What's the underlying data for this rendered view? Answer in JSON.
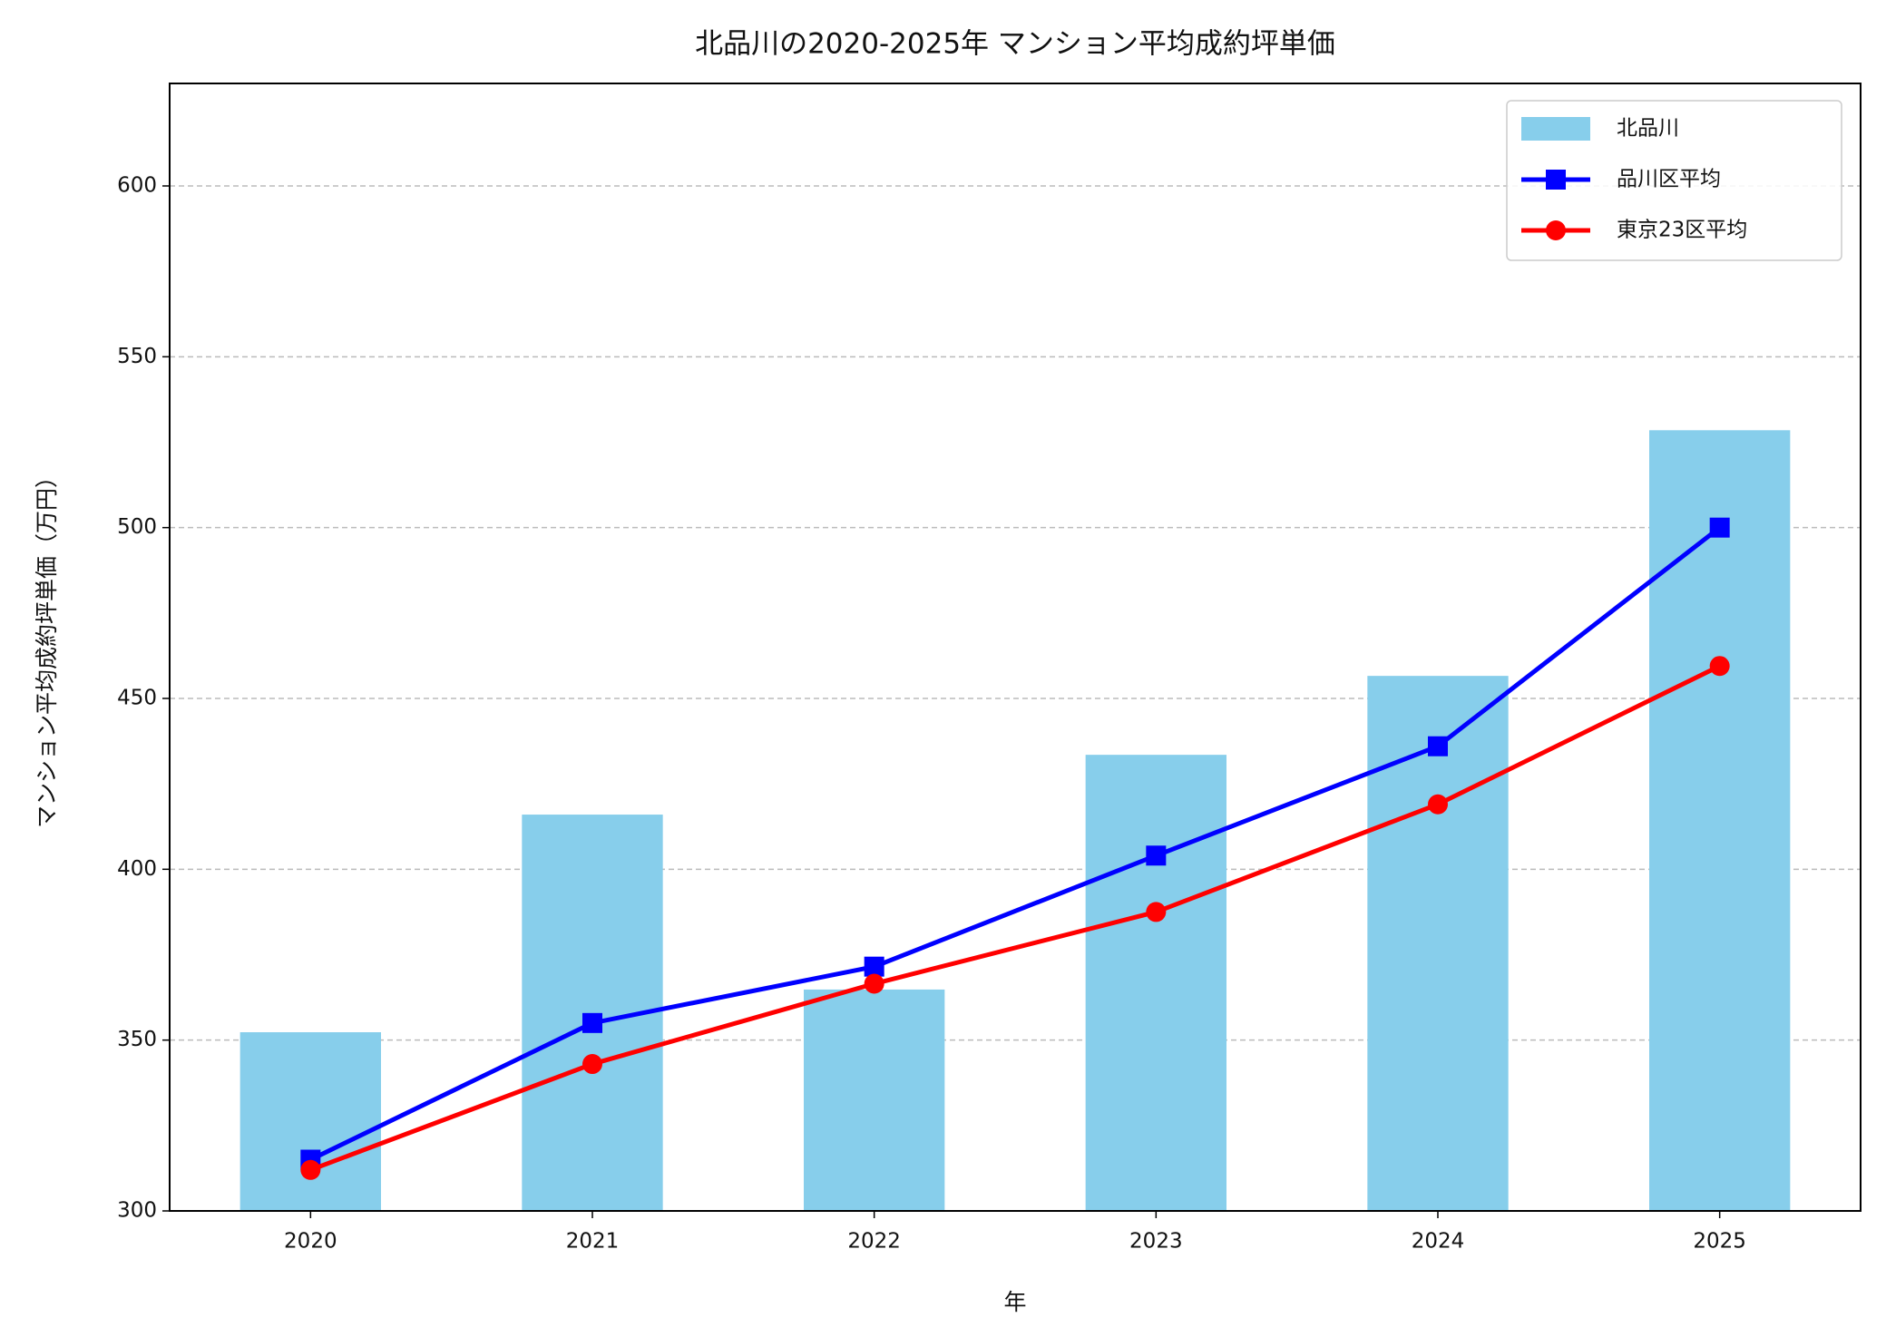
{
  "chart_data": {
    "type": "bar",
    "title": "北品川の2020-2025年 マンション平均成約坪単価",
    "x_label": "年",
    "y_label": "マンション平均成約坪単価（万円）",
    "categories": [
      "2020",
      "2021",
      "2022",
      "2023",
      "2024",
      "2025"
    ],
    "series": [
      {
        "name": "北品川",
        "type": "bar",
        "color": "#87ceeb",
        "values": [
          352.3,
          416,
          364.8,
          433.5,
          456.6,
          528.5
        ]
      },
      {
        "name": "品川区平均",
        "type": "line",
        "marker": "square",
        "color": "#0000ff",
        "values": [
          315,
          355,
          371.5,
          404,
          436,
          500
        ]
      },
      {
        "name": "東京23区平均",
        "type": "line",
        "marker": "circle",
        "color": "#ff0000",
        "values": [
          312,
          343,
          366.5,
          387.5,
          419,
          459.5
        ]
      }
    ],
    "ylim": [
      300,
      630
    ],
    "yticks": [
      300,
      350,
      400,
      450,
      500,
      550,
      600
    ],
    "grid": true,
    "legend": "upper right"
  }
}
